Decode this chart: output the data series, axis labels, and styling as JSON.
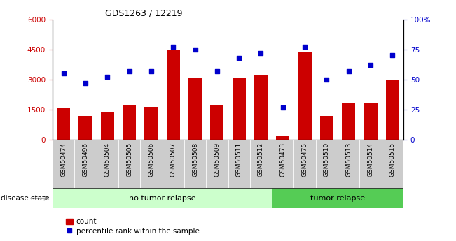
{
  "title": "GDS1263 / 12219",
  "samples": [
    "GSM50474",
    "GSM50496",
    "GSM50504",
    "GSM50505",
    "GSM50506",
    "GSM50507",
    "GSM50508",
    "GSM50509",
    "GSM50511",
    "GSM50512",
    "GSM50473",
    "GSM50475",
    "GSM50510",
    "GSM50513",
    "GSM50514",
    "GSM50515"
  ],
  "counts": [
    1600,
    1200,
    1350,
    1750,
    1650,
    4500,
    3100,
    1700,
    3100,
    3250,
    200,
    4350,
    1200,
    1800,
    1800,
    2950
  ],
  "percentiles": [
    55,
    47,
    52,
    57,
    57,
    77,
    75,
    57,
    68,
    72,
    27,
    77,
    50,
    57,
    62,
    70
  ],
  "bar_color": "#cc0000",
  "dot_color": "#0000cc",
  "no_tumor_count": 10,
  "tumor_count": 6,
  "no_tumor_label": "no tumor relapse",
  "tumor_label": "tumor relapse",
  "disease_state_label": "disease state",
  "legend_count_label": "count",
  "legend_percentile_label": "percentile rank within the sample",
  "ylim_left": [
    0,
    6000
  ],
  "ylim_right": [
    0,
    100
  ],
  "yticks_left": [
    0,
    1500,
    3000,
    4500,
    6000
  ],
  "yticks_right": [
    0,
    25,
    50,
    75,
    100
  ],
  "bg_color": "#ffffff",
  "no_tumor_bg": "#ccffcc",
  "tumor_bg": "#55cc55",
  "xlabel_bg": "#cccccc",
  "grid_color": "#000000"
}
